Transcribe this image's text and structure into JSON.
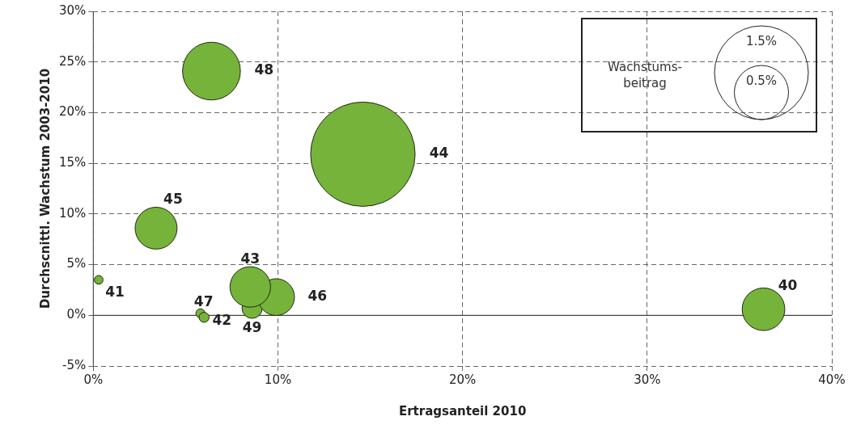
{
  "chart_data": {
    "type": "bubble",
    "xlabel": "Ertragsanteil 2010",
    "ylabel": "Durchscnittl. Wachstum 2003-2010",
    "legend_title": "Wachstums-beitrag",
    "xlim": [
      0,
      40
    ],
    "xticks": [
      {
        "value": 0,
        "label": "0%"
      },
      {
        "value": 10,
        "label": "10%"
      },
      {
        "value": 20,
        "label": "20%"
      },
      {
        "value": 30,
        "label": "30%"
      },
      {
        "value": 40,
        "label": "40%"
      }
    ],
    "ylim": [
      -5,
      30
    ],
    "yticks": [
      {
        "value": -5,
        "label": "-5%"
      },
      {
        "value": 0,
        "label": "0%"
      },
      {
        "value": 5,
        "label": "5%"
      },
      {
        "value": 10,
        "label": "10%"
      },
      {
        "value": 15,
        "label": "15%"
      },
      {
        "value": 20,
        "label": "20%"
      },
      {
        "value": 25,
        "label": "25%"
      },
      {
        "value": 30,
        "label": "30%"
      }
    ],
    "grid": true,
    "size_legend": [
      {
        "value": 0.5,
        "label": "0.5%"
      },
      {
        "value": 1.5,
        "label": "1.5%"
      }
    ],
    "series": [
      {
        "name": "40",
        "color": "#76b33a",
        "x": [
          36.3
        ],
        "values": [
          0.6
        ],
        "sizes": [
          0.31
        ]
      },
      {
        "name": "41",
        "color": "#76b33a",
        "x": [
          0.29
        ],
        "values": [
          3.5
        ],
        "sizes": [
          0.013
        ]
      },
      {
        "name": "42",
        "color": "#76b33a",
        "x": [
          6.0
        ],
        "values": [
          -0.2
        ],
        "sizes": [
          0.017
        ]
      },
      {
        "name": "43",
        "color": "#76b33a",
        "x": [
          8.5
        ],
        "values": [
          2.8
        ],
        "sizes": [
          0.28
        ]
      },
      {
        "name": "44",
        "color": "#76b33a",
        "x": [
          14.6
        ],
        "values": [
          15.9
        ],
        "sizes": [
          1.86
        ]
      },
      {
        "name": "45",
        "color": "#76b33a",
        "x": [
          3.4
        ],
        "values": [
          8.6
        ],
        "sizes": [
          0.3
        ]
      },
      {
        "name": "46",
        "color": "#76b33a",
        "x": [
          9.9
        ],
        "values": [
          1.8
        ],
        "sizes": [
          0.23
        ]
      },
      {
        "name": "47",
        "color": "#76b33a",
        "x": [
          5.8
        ],
        "values": [
          0.2
        ],
        "sizes": [
          0.014
        ]
      },
      {
        "name": "48",
        "color": "#76b33a",
        "x": [
          6.4
        ],
        "values": [
          24.1
        ],
        "sizes": [
          0.57
        ]
      },
      {
        "name": "49",
        "color": "#76b33a",
        "x": [
          8.6
        ],
        "values": [
          0.7
        ],
        "sizes": [
          0.07
        ]
      }
    ]
  }
}
